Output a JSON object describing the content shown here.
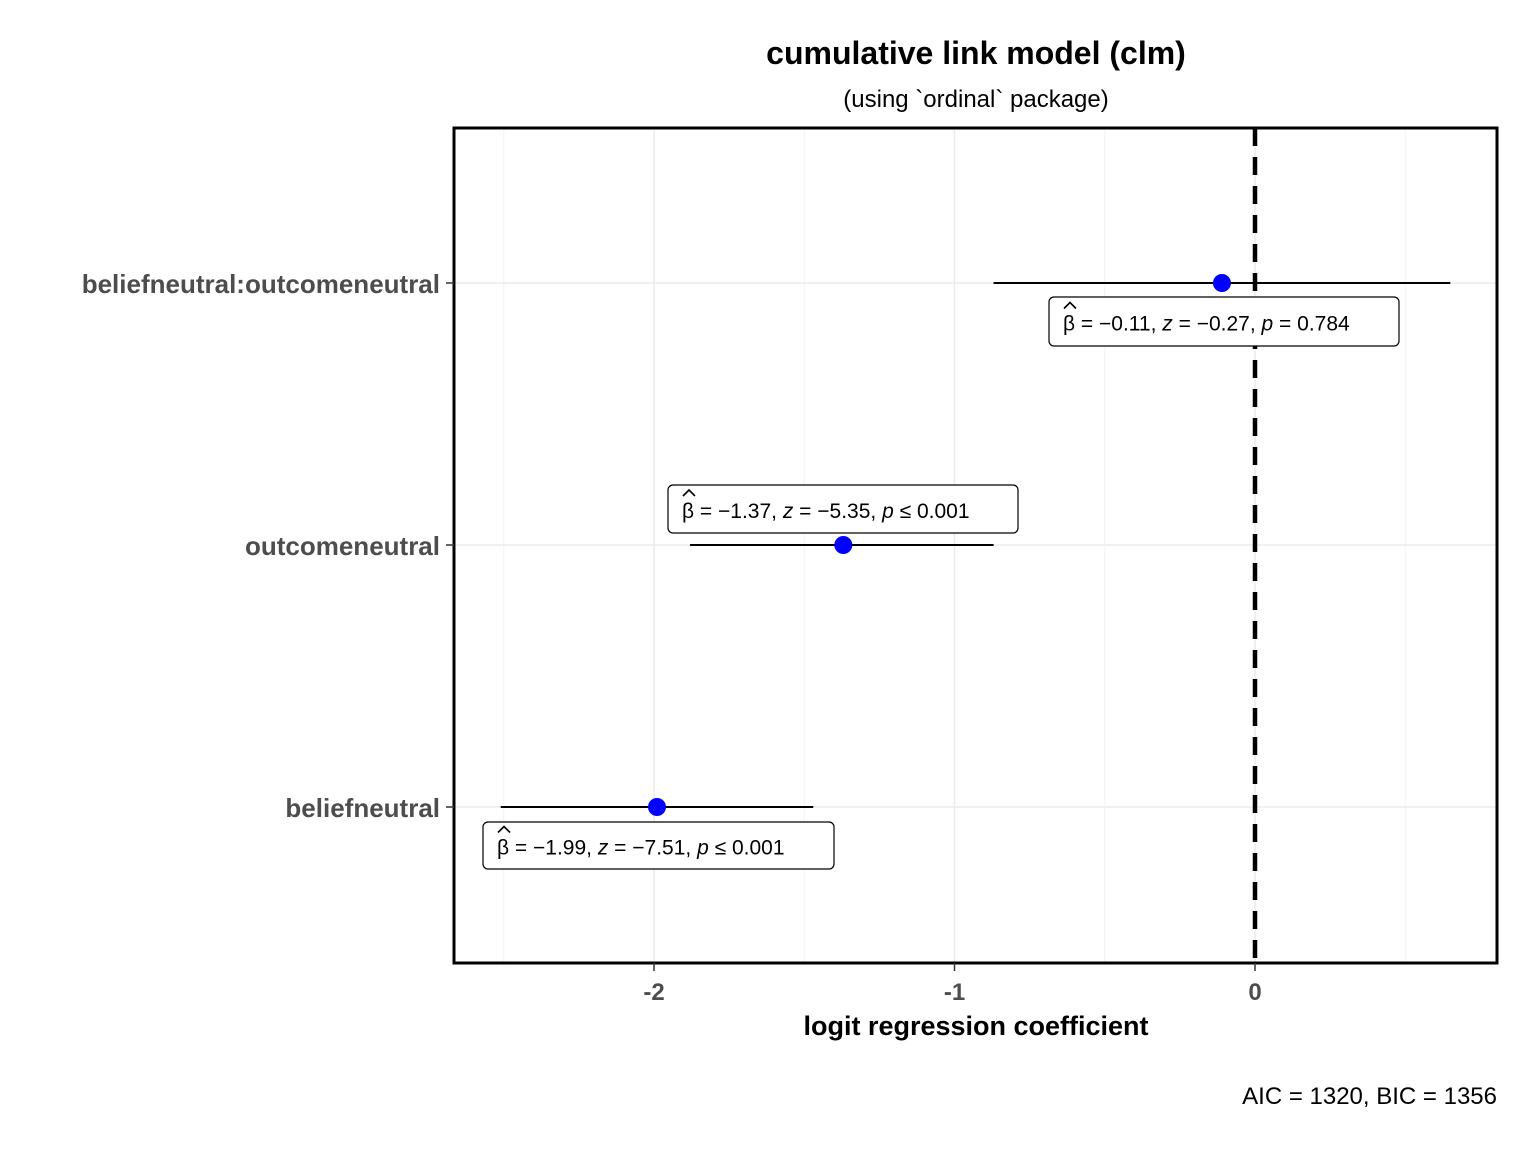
{
  "chart_data": {
    "type": "scatter",
    "title": "cumulative link model (clm)",
    "subtitle": "(using `ordinal` package)",
    "xlabel": "logit regression coefficient",
    "ylabel": "",
    "xlim": [
      -2.67,
      0.8
    ],
    "xticks": [
      -2,
      -1,
      0
    ],
    "xtick_labels": [
      "-2",
      "-1",
      "0"
    ],
    "reference_line": 0,
    "grid": true,
    "point_color": "#0000ff",
    "categories": [
      "beliefneutral:outcomeneutral",
      "outcomeneutral",
      "beliefneutral"
    ],
    "series": [
      {
        "estimates": [
          -0.11,
          -1.37,
          -1.99
        ],
        "ci_low": [
          -0.87,
          -1.88,
          -2.51
        ],
        "ci_high": [
          0.65,
          -0.87,
          -1.47
        ],
        "labels": [
          {
            "beta": "= −0.11,",
            "z": "= −0.27,",
            "p_op": "=",
            "p": "0.784"
          },
          {
            "beta": "= −1.37,",
            "z": "= −5.35,",
            "p_op": "≤",
            "p": "0.001"
          },
          {
            "beta": "= −1.99,",
            "z": "= −7.51,",
            "p_op": "≤",
            "p": "0.001"
          }
        ]
      }
    ],
    "caption": "AIC = 1320, BIC = 1356"
  }
}
